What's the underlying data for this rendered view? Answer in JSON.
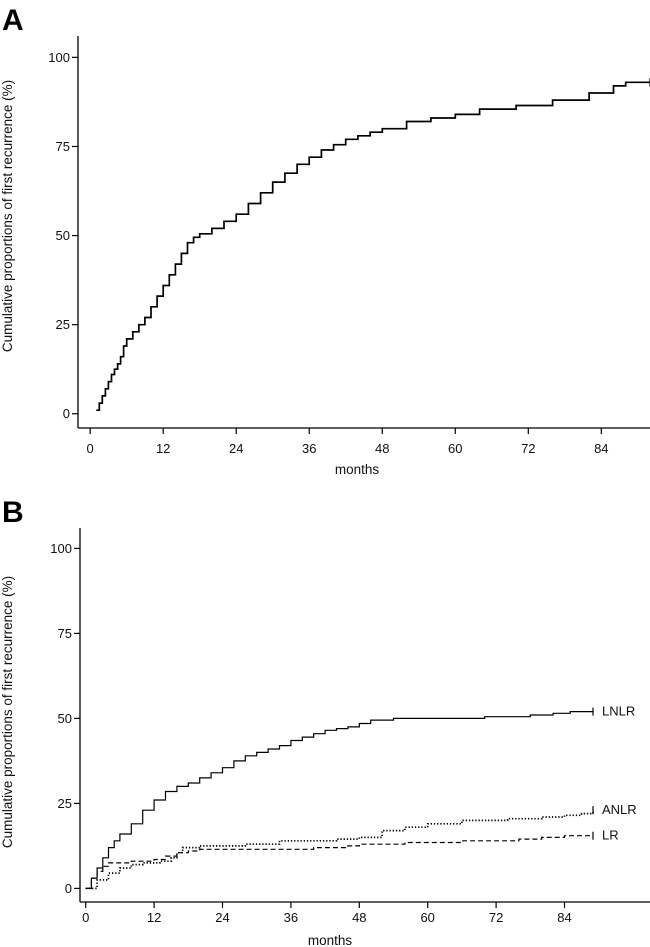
{
  "chart_data": [
    {
      "type": "line",
      "panel_label": "A",
      "xlabel": "months",
      "ylabel": "Cumulative proportions of first recurrence (%)",
      "xlim": [
        -2,
        92
      ],
      "ylim": [
        -4,
        106
      ],
      "x_ticks": [
        "0",
        "12",
        "24",
        "36",
        "48",
        "60",
        "72",
        "84"
      ],
      "y_ticks": [
        "0",
        "25",
        "50",
        "75",
        "100"
      ],
      "grid": false,
      "step": true,
      "series": [
        {
          "style": "solid",
          "color": "#000000",
          "points": [
            [
              1,
              1
            ],
            [
              1.5,
              3
            ],
            [
              2,
              5
            ],
            [
              2.5,
              7
            ],
            [
              3,
              9
            ],
            [
              3.5,
              11
            ],
            [
              4,
              12.5
            ],
            [
              4.5,
              14
            ],
            [
              5,
              16
            ],
            [
              5.5,
              19
            ],
            [
              6,
              21
            ],
            [
              7,
              23
            ],
            [
              8,
              25
            ],
            [
              9,
              27
            ],
            [
              10,
              30
            ],
            [
              11,
              33
            ],
            [
              12,
              36
            ],
            [
              13,
              39
            ],
            [
              14,
              42
            ],
            [
              15,
              45
            ],
            [
              16,
              48
            ],
            [
              17,
              49.5
            ],
            [
              18,
              50.5
            ],
            [
              20,
              52
            ],
            [
              22,
              54
            ],
            [
              24,
              56
            ],
            [
              26,
              59
            ],
            [
              28,
              62
            ],
            [
              30,
              65
            ],
            [
              32,
              67.5
            ],
            [
              34,
              70
            ],
            [
              36,
              72
            ],
            [
              38,
              74
            ],
            [
              40,
              75.5
            ],
            [
              42,
              77
            ],
            [
              44,
              78
            ],
            [
              46,
              79
            ],
            [
              48,
              80
            ],
            [
              52,
              82
            ],
            [
              56,
              83
            ],
            [
              60,
              84
            ],
            [
              64,
              85.5
            ],
            [
              70,
              86.5
            ],
            [
              76,
              88
            ],
            [
              82,
              90
            ],
            [
              86,
              92
            ],
            [
              88,
              93
            ],
            [
              92,
              93
            ]
          ]
        }
      ]
    },
    {
      "type": "line",
      "panel_label": "B",
      "xlabel": "months",
      "ylabel": "Cumulative proportions of first recurrence (%)",
      "xlim": [
        -1,
        99
      ],
      "ylim": [
        -4,
        106
      ],
      "x_ticks": [
        "0",
        "12",
        "24",
        "36",
        "48",
        "60",
        "72",
        "84"
      ],
      "y_ticks": [
        "0",
        "25",
        "50",
        "75",
        "100"
      ],
      "grid": false,
      "step": true,
      "series": [
        {
          "name": "LNLR",
          "style": "solid",
          "color": "#000000",
          "points": [
            [
              0,
              0
            ],
            [
              1,
              3
            ],
            [
              2,
              6
            ],
            [
              3,
              9
            ],
            [
              4,
              12
            ],
            [
              5,
              14
            ],
            [
              6,
              16
            ],
            [
              8,
              19
            ],
            [
              10,
              23
            ],
            [
              12,
              26
            ],
            [
              14,
              28.5
            ],
            [
              16,
              30
            ],
            [
              18,
              31
            ],
            [
              20,
              32.5
            ],
            [
              22,
              34
            ],
            [
              24,
              35.5
            ],
            [
              26,
              37.5
            ],
            [
              28,
              39
            ],
            [
              30,
              40
            ],
            [
              32,
              41
            ],
            [
              34,
              42
            ],
            [
              36,
              43.5
            ],
            [
              38,
              44.5
            ],
            [
              40,
              45.5
            ],
            [
              42,
              46.5
            ],
            [
              44,
              47
            ],
            [
              46,
              47.5
            ],
            [
              48,
              48.5
            ],
            [
              50,
              49.5
            ],
            [
              54,
              50
            ],
            [
              60,
              50
            ],
            [
              70,
              50.5
            ],
            [
              78,
              51
            ],
            [
              82,
              51.5
            ],
            [
              85,
              52
            ],
            [
              89,
              52
            ]
          ]
        },
        {
          "name": "ANLR",
          "style": "dotted",
          "color": "#000000",
          "points": [
            [
              0,
              0
            ],
            [
              2,
              2.5
            ],
            [
              4,
              4.5
            ],
            [
              6,
              6
            ],
            [
              8,
              7
            ],
            [
              10,
              7.5
            ],
            [
              13,
              8
            ],
            [
              15,
              9
            ],
            [
              16,
              10.5
            ],
            [
              17,
              12
            ],
            [
              20,
              12.5
            ],
            [
              28,
              13
            ],
            [
              34,
              14
            ],
            [
              44,
              14.5
            ],
            [
              48,
              15
            ],
            [
              52,
              17
            ],
            [
              56,
              18
            ],
            [
              60,
              19
            ],
            [
              66,
              20
            ],
            [
              74,
              20.5
            ],
            [
              80,
              21
            ],
            [
              84,
              21.5
            ],
            [
              87,
              22
            ],
            [
              89,
              23
            ]
          ]
        },
        {
          "name": "LR",
          "style": "dashed",
          "color": "#000000",
          "points": [
            [
              0,
              0
            ],
            [
              1,
              3
            ],
            [
              2,
              5
            ],
            [
              3,
              6.5
            ],
            [
              4,
              7.5
            ],
            [
              8,
              8
            ],
            [
              12,
              8.5
            ],
            [
              14,
              9.5
            ],
            [
              16,
              10.5
            ],
            [
              18,
              11
            ],
            [
              20,
              11.5
            ],
            [
              30,
              11.5
            ],
            [
              40,
              12
            ],
            [
              46,
              12.5
            ],
            [
              48,
              13
            ],
            [
              56,
              13.5
            ],
            [
              66,
              14
            ],
            [
              76,
              14.5
            ],
            [
              80,
              15
            ],
            [
              84,
              15.5
            ],
            [
              89,
              15.5
            ]
          ]
        }
      ]
    }
  ]
}
